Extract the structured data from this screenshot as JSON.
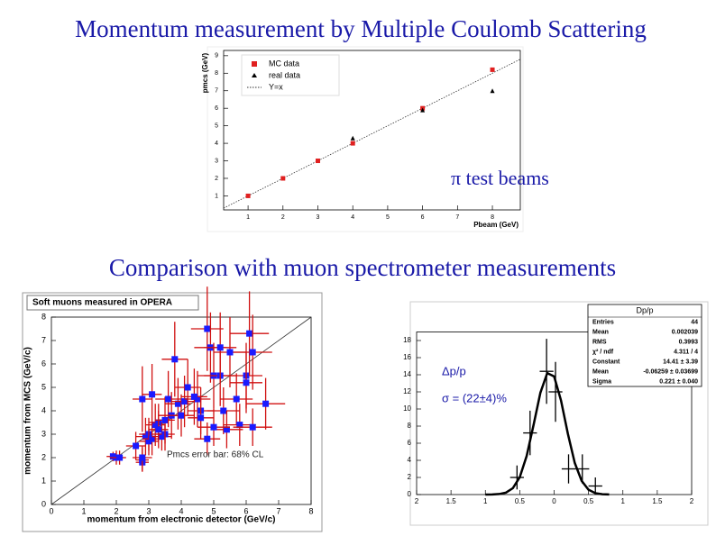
{
  "slide": {
    "title": "Momentum measurement by Multiple Coulomb Scattering",
    "subtitle": "Comparison with muon spectrometer measurements"
  },
  "chart_data": [
    {
      "type": "scatter",
      "xlabel": "Pbeam (GeV)",
      "ylabel": "pmcs (GeV)",
      "xlim": [
        0.3,
        8.8
      ],
      "ylim": [
        0.2,
        9.3
      ],
      "xticks": [
        1,
        2,
        3,
        4,
        5,
        6,
        7,
        8
      ],
      "yticks": [
        1,
        2,
        3,
        4,
        5,
        6,
        7,
        8,
        9
      ],
      "diagonal": true,
      "diagonal_name": "Y=x",
      "legend": "top-left",
      "annotations": [
        "π test beams"
      ],
      "series": [
        {
          "name": "MC data",
          "color": "#e02020",
          "marker": "square",
          "x": [
            1,
            2,
            3,
            4,
            6,
            8
          ],
          "values": [
            1,
            2,
            3,
            4,
            6,
            8.2
          ]
        },
        {
          "name": "real data",
          "color": "#000000",
          "marker": "triangle",
          "x": [
            4,
            6,
            8
          ],
          "values": [
            4.3,
            5.9,
            7
          ]
        }
      ]
    },
    {
      "type": "scatter",
      "title": "Soft muons measured in OPERA",
      "xlabel": "momentum from electronic detector (GeV/c)",
      "ylabel": "momentum from MCS (GeV/c)",
      "xlim": [
        0,
        8
      ],
      "ylim": [
        0,
        8
      ],
      "xticks": [
        0,
        1,
        2,
        3,
        4,
        5,
        6,
        7,
        8
      ],
      "yticks": [
        0,
        1,
        2,
        3,
        4,
        5,
        6,
        7,
        8
      ],
      "diagonal": true,
      "annotations": [
        "Pmcs error bar: 68% CL"
      ],
      "series": [
        {
          "color": "#1a1aff",
          "error_color": "#d01010",
          "marker": "square",
          "x": [
            1.9,
            2.0,
            2.1,
            2.6,
            2.8,
            2.8,
            2.8,
            2.9,
            3.0,
            3.0,
            3.1,
            3.2,
            3.3,
            3.4,
            3.5,
            3.5,
            3.6,
            3.7,
            3.8,
            3.9,
            4.0,
            4.1,
            2.8,
            3.1,
            4.5,
            4.6,
            4.6,
            4.8,
            4.8,
            4.9,
            5.0,
            5.2,
            5.2,
            5.3,
            5.4,
            5.5,
            5.7,
            5.8,
            6.0,
            6.0,
            6.1,
            6.2,
            6.2,
            6.6,
            5.0,
            4.2,
            4.4,
            3.3
          ],
          "values": [
            2.05,
            2.0,
            2.0,
            2.5,
            1.8,
            1.9,
            2.0,
            2.9,
            3.0,
            2.7,
            2.8,
            3.4,
            3.5,
            2.9,
            3.0,
            3.6,
            4.5,
            3.8,
            6.2,
            4.3,
            3.8,
            4.4,
            4.5,
            4.7,
            4.5,
            4.0,
            3.7,
            2.8,
            7.5,
            6.7,
            5.5,
            5.5,
            6.7,
            4.0,
            3.2,
            6.5,
            4.5,
            3.4,
            5.5,
            5.2,
            7.3,
            6.5,
            3.3,
            4.3,
            3.3,
            5.0,
            4.6,
            3.2
          ],
          "xerr": [
            0.2,
            0.2,
            0.2,
            0.3,
            0.2,
            0.2,
            0.3,
            0.3,
            0.3,
            0.3,
            0.3,
            0.3,
            0.3,
            0.3,
            0.3,
            0.3,
            0.4,
            0.4,
            0.4,
            0.4,
            0.4,
            0.4,
            0.3,
            0.3,
            0.4,
            0.4,
            0.4,
            0.4,
            0.5,
            0.5,
            0.5,
            0.5,
            0.5,
            0.5,
            0.5,
            0.5,
            0.5,
            0.5,
            0.5,
            0.5,
            0.6,
            0.6,
            0.6,
            0.6,
            0.5,
            0.4,
            0.4,
            0.3
          ],
          "yerr": [
            0.2,
            0.3,
            0.3,
            0.6,
            0.4,
            0.5,
            0.5,
            0.8,
            0.7,
            0.6,
            0.7,
            0.9,
            0.8,
            0.6,
            0.7,
            1.0,
            1.2,
            1.0,
            1.6,
            1.1,
            0.9,
            1.1,
            1.4,
            1.3,
            1.2,
            1.0,
            0.9,
            0.7,
            1.8,
            1.5,
            1.4,
            1.3,
            1.5,
            1.0,
            0.8,
            1.5,
            1.1,
            0.9,
            1.4,
            1.3,
            1.8,
            1.6,
            0.8,
            1.1,
            0.8,
            1.2,
            1.2,
            0.8
          ]
        }
      ]
    },
    {
      "type": "scatter",
      "title": "Dp/p",
      "xlim": [
        -2,
        2
      ],
      "ylim": [
        0,
        19
      ],
      "xticks": [
        {
          "value": -2,
          "label": "2"
        },
        {
          "value": -1.5,
          "label": "1.5"
        },
        {
          "value": -1,
          "label": "1"
        },
        {
          "value": -0.5,
          "label": "0.5"
        },
        0,
        0.5,
        1,
        1.5,
        2
      ],
      "yticks": [
        0,
        2,
        4,
        6,
        8,
        10,
        12,
        14,
        16,
        18
      ],
      "annotations": [
        "Δp/p",
        "σ = (22±4)%"
      ],
      "stats": [
        [
          "Entries",
          "44"
        ],
        [
          "Mean",
          "0.002039"
        ],
        [
          "RMS",
          "0.3993"
        ],
        [
          "χ² / ndf",
          "4.311 / 4"
        ],
        [
          "Constant",
          "14.41 ± 3.39"
        ],
        [
          "Mean",
          "-0.06259 ± 0.03699"
        ],
        [
          "Sigma",
          "0.221 ± 0.040"
        ]
      ],
      "series": [
        {
          "color": "#000000",
          "marker": "none",
          "x": [
            -0.54,
            -0.35,
            -0.11,
            0.02,
            0.21,
            0.41,
            0.6
          ],
          "values": [
            2,
            7.2,
            14.4,
            12,
            3,
            3,
            1
          ],
          "xerr": [
            0.1,
            0.1,
            0.1,
            0.1,
            0.1,
            0.1,
            0.1
          ],
          "yerr": [
            1.4,
            2.6,
            3.8,
            3.5,
            1.7,
            1.7,
            1
          ]
        },
        {
          "color": "#000000",
          "style": "line",
          "x": [
            -1.0,
            -0.9,
            -0.8,
            -0.7,
            -0.6,
            -0.5,
            -0.4,
            -0.3,
            -0.2,
            -0.1,
            0.0,
            0.1,
            0.2,
            0.3,
            0.4,
            0.5,
            0.6,
            0.7,
            0.8
          ],
          "values": [
            0,
            0.01,
            0.06,
            0.23,
            0.75,
            2.03,
            4.5,
            8.1,
            11.9,
            14.2,
            13.8,
            11.0,
            7.1,
            3.7,
            1.6,
            0.56,
            0.16,
            0.04,
            0.01
          ]
        }
      ]
    }
  ]
}
